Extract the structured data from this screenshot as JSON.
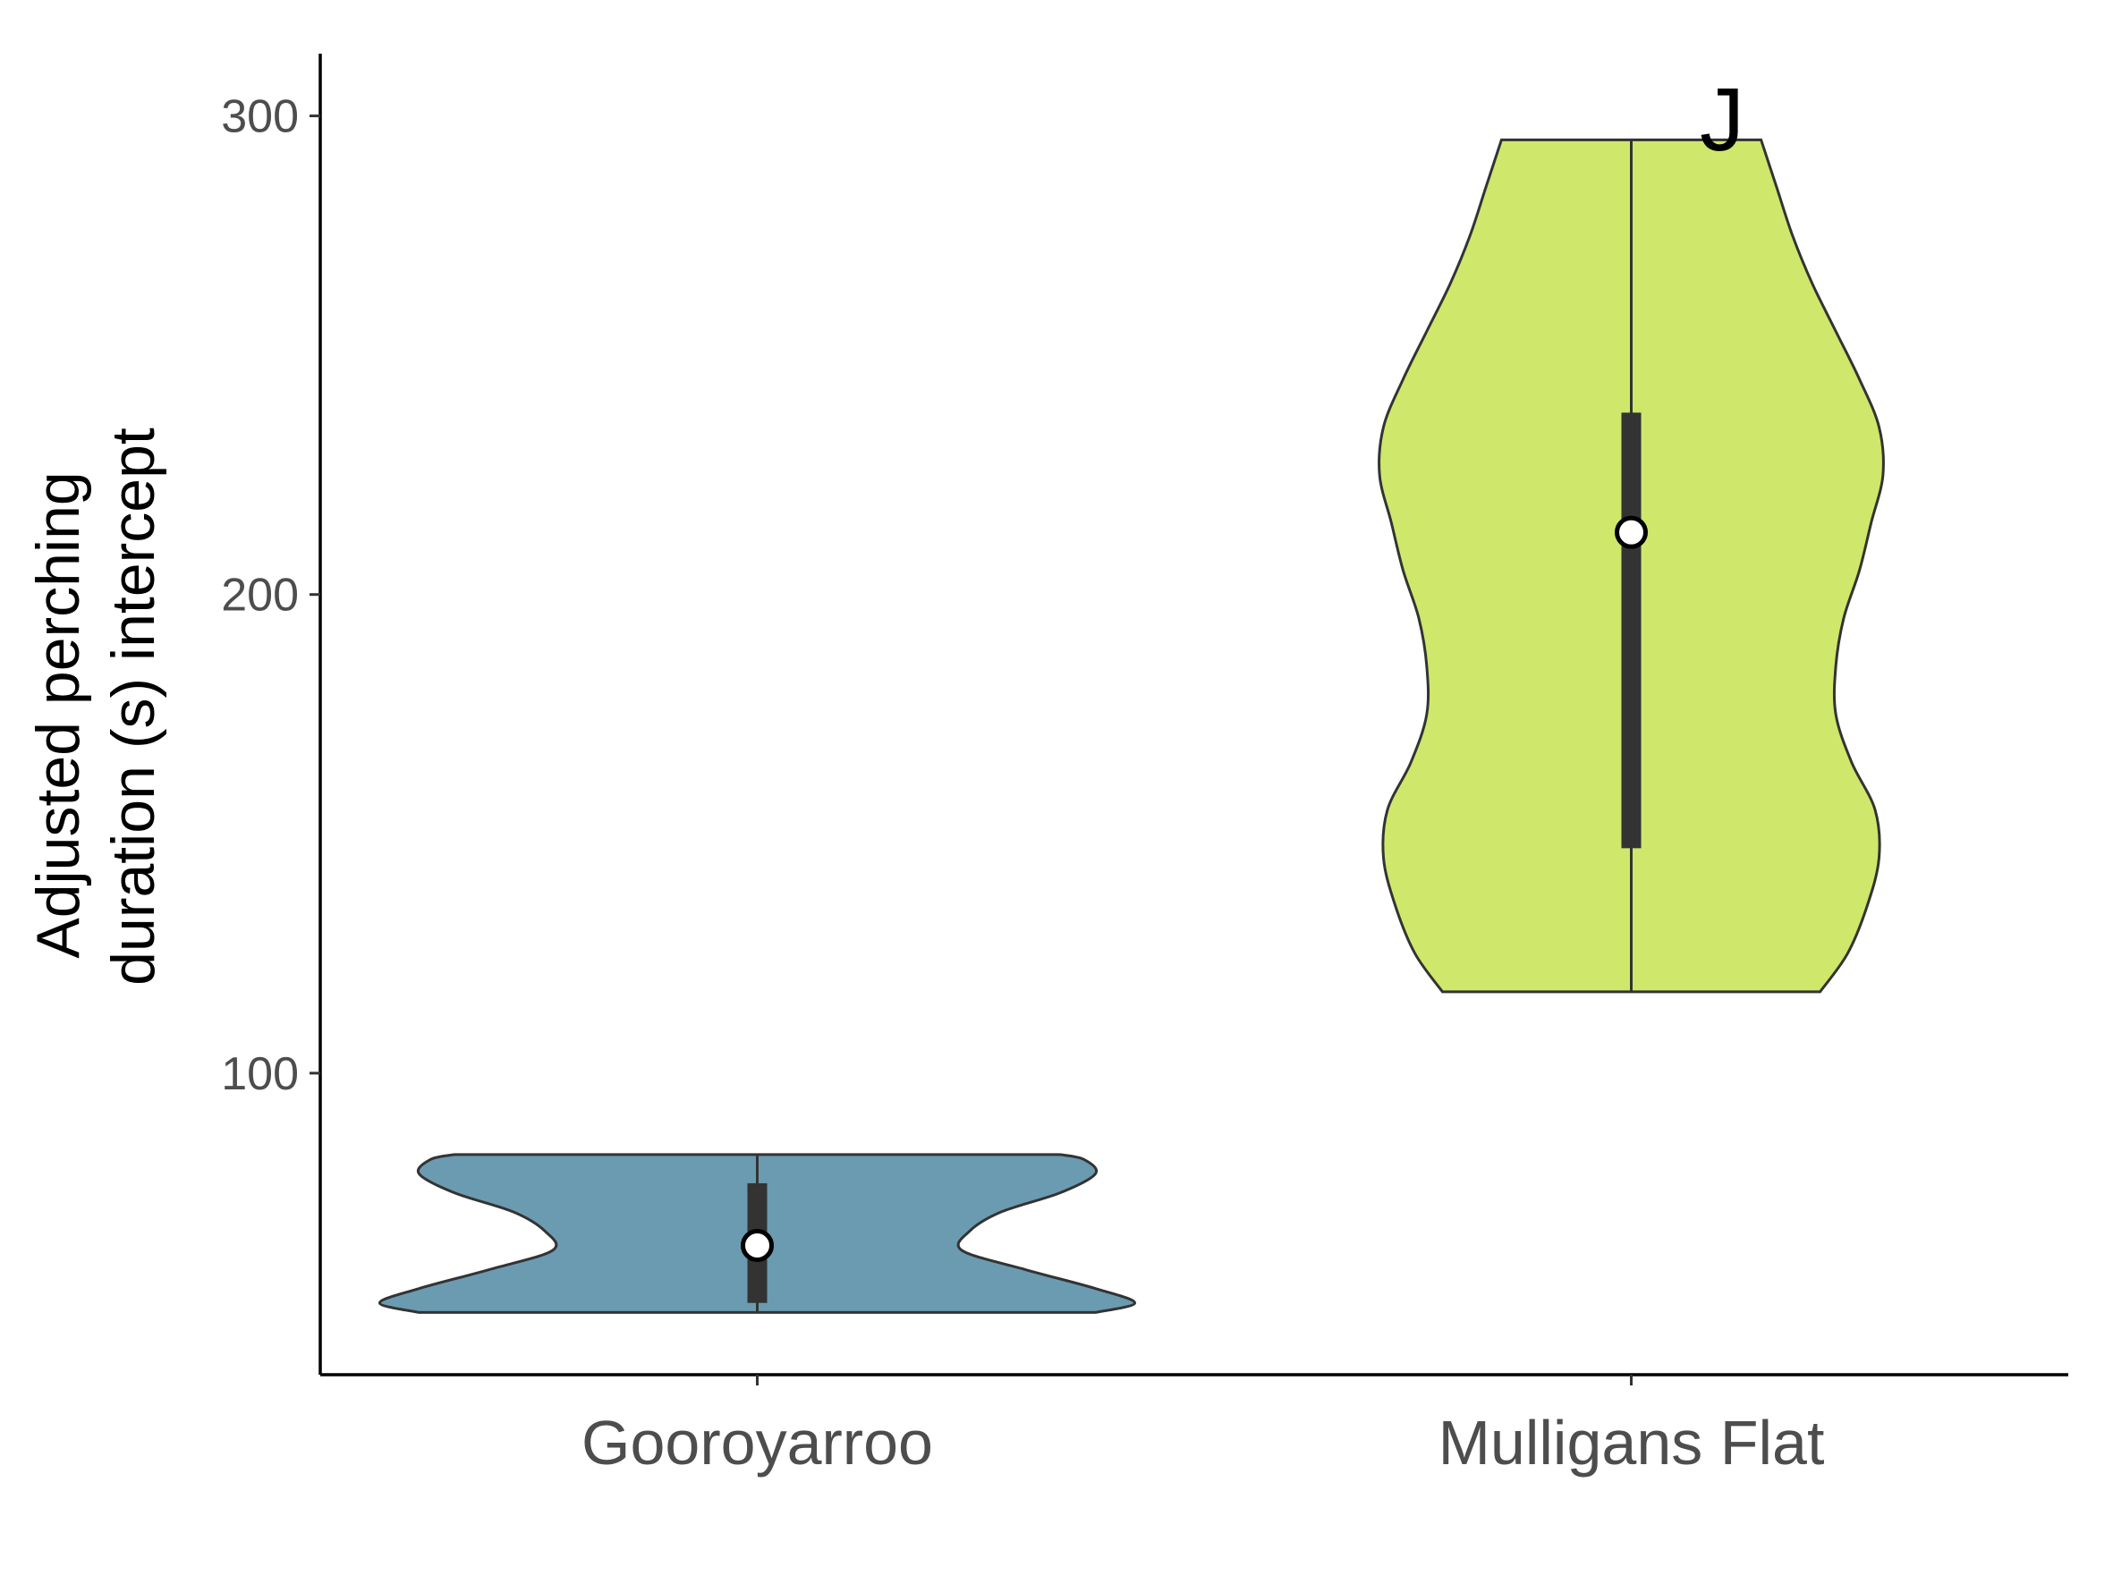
{
  "chart_data": {
    "type": "violin",
    "panel_tag": "J",
    "ylabel_lines": [
      "Adjusted perching",
      "duration (s) intercept"
    ],
    "xlabel": "",
    "ylim": [
      37,
      313
    ],
    "yticks": [
      100,
      200,
      300
    ],
    "categories": [
      "Gooroyarroo",
      "Mulligans Flat"
    ],
    "groups": [
      {
        "name": "Gooroyarroo",
        "color": "#6a9bb1",
        "min": 50,
        "max": 83,
        "median": 64,
        "q1": 52,
        "q3": 77,
        "density_profile": [
          {
            "y": 50,
            "w": 0.86
          },
          {
            "y": 52,
            "w": 0.96
          },
          {
            "y": 55,
            "w": 0.86
          },
          {
            "y": 59,
            "w": 0.68
          },
          {
            "y": 63,
            "w": 0.52
          },
          {
            "y": 67,
            "w": 0.54
          },
          {
            "y": 71,
            "w": 0.62
          },
          {
            "y": 75,
            "w": 0.77
          },
          {
            "y": 79,
            "w": 0.86
          },
          {
            "y": 82,
            "w": 0.83
          },
          {
            "y": 83,
            "w": 0.77
          }
        ]
      },
      {
        "name": "Mulligans Flat",
        "color": "#cfe76b",
        "min": 117,
        "max": 295,
        "median": 213,
        "q1": 147,
        "q3": 238,
        "density_profile": [
          {
            "y": 117,
            "w": 0.48
          },
          {
            "y": 125,
            "w": 0.55
          },
          {
            "y": 135,
            "w": 0.6
          },
          {
            "y": 145,
            "w": 0.63
          },
          {
            "y": 155,
            "w": 0.62
          },
          {
            "y": 165,
            "w": 0.56
          },
          {
            "y": 175,
            "w": 0.52
          },
          {
            "y": 185,
            "w": 0.52
          },
          {
            "y": 195,
            "w": 0.54
          },
          {
            "y": 205,
            "w": 0.58
          },
          {
            "y": 215,
            "w": 0.61
          },
          {
            "y": 225,
            "w": 0.64
          },
          {
            "y": 235,
            "w": 0.63
          },
          {
            "y": 245,
            "w": 0.58
          },
          {
            "y": 255,
            "w": 0.52
          },
          {
            "y": 265,
            "w": 0.46
          },
          {
            "y": 275,
            "w": 0.41
          },
          {
            "y": 285,
            "w": 0.37
          },
          {
            "y": 295,
            "w": 0.33
          }
        ]
      }
    ]
  }
}
